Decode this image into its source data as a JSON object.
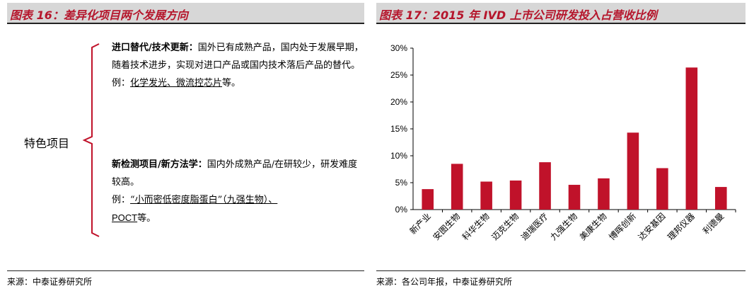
{
  "left_panel": {
    "title": "图表 16：差异化项目两个发展方向",
    "feature_label": "特色项目",
    "block_a": {
      "heading": "进口替代/技术更新：",
      "body": "国外已有成熟产品，国内处于发展早期，随着技术进步，实现对进口产品或国内技术落后产品的替代。",
      "example_prefix": "例：",
      "example_link": "化学发光、微流控芯片",
      "example_suffix": "等。"
    },
    "block_b": {
      "heading": "新检测项目/新方法学：",
      "body": "国内外成熟产品/在研较少，研发难度较高。",
      "example_prefix": "例：",
      "example_link": "“小而密低密度脂蛋白”（九强生物）、",
      "example_link_2": "POCT",
      "example_suffix": "等。"
    },
    "source": "来源：中泰证券研究所"
  },
  "right_panel": {
    "title": "图表 17：2015 年 IVD 上市公司研发投入占营收比例",
    "source": "来源：各公司年报，中泰证券研究所"
  },
  "chart_data": {
    "type": "bar",
    "title": "图表 17：2015 年 IVD 上市公司研发投入占营收比例",
    "categories": [
      "新产业",
      "安图生物",
      "科华生物",
      "迈克生物",
      "迪瑞医疗",
      "九强生物",
      "美康生物",
      "博晖创新",
      "达安基因",
      "理邦仪器",
      "利德曼"
    ],
    "values": [
      3.8,
      8.5,
      5.2,
      5.4,
      8.8,
      4.6,
      5.8,
      14.3,
      7.7,
      26.4,
      4.2
    ],
    "unit": "%",
    "ylim": [
      0,
      30
    ],
    "yticks": [
      0,
      5,
      10,
      15,
      20,
      25,
      30
    ],
    "ytick_labels": [
      "0%",
      "5%",
      "10%",
      "15%",
      "20%",
      "25%",
      "30%"
    ],
    "bar_color": "#c0122a",
    "grid": false,
    "legend": "none"
  },
  "colors": {
    "title_red": "#b5152b",
    "title_bar_bg": "#d7d7d7",
    "brace_red": "#c0122a"
  }
}
